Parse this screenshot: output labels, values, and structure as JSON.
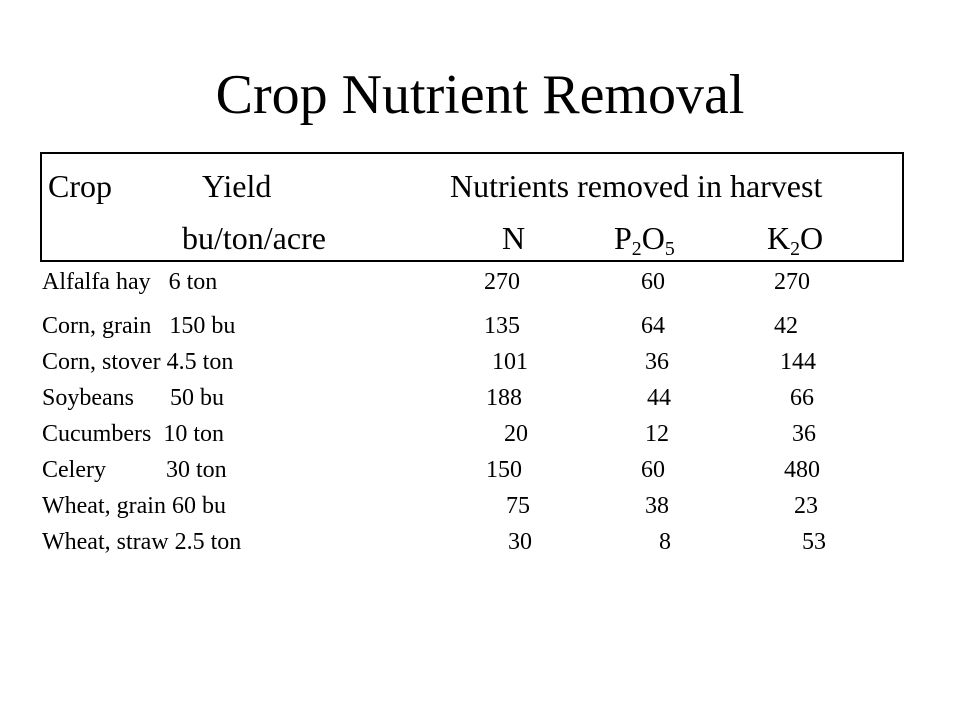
{
  "title": "Crop Nutrient Removal",
  "header": {
    "crop": "Crop",
    "yield": "Yield",
    "nutrients": "Nutrients removed in harvest",
    "units": "bu/ton/acre",
    "n": "N",
    "p_base": "P",
    "p_sub1": "2",
    "p_o": "O",
    "p_sub2": "5",
    "k_base": "K",
    "k_sub": "2",
    "k_o": "O"
  },
  "rows": [
    {
      "crop_yield": "Alfalfa hay   6 ton",
      "n": "270",
      "p2o5": "60",
      "k2o": "270"
    },
    {
      "crop_yield": "Corn, grain   150 bu",
      "n": "135",
      "p2o5": "64",
      "k2o": "42"
    },
    {
      "crop_yield": "Corn, stover 4.5 ton",
      "n": "101",
      "p2o5": "36",
      "k2o": "144"
    },
    {
      "crop_yield": "Soybeans      50 bu",
      "n": "188",
      "p2o5": "44",
      "k2o": "66"
    },
    {
      "crop_yield": "Cucumbers  10 ton",
      "n": "20",
      "p2o5": "12",
      "k2o": "36"
    },
    {
      "crop_yield": "Celery          30 ton",
      "n": "150",
      "p2o5": "60",
      "k2o": "480"
    },
    {
      "crop_yield": "Wheat, grain 60 bu",
      "n": "75",
      "p2o5": "38",
      "k2o": "23"
    },
    {
      "crop_yield": "Wheat, straw 2.5 ton",
      "n": "30",
      "p2o5": "8",
      "k2o": "53"
    }
  ]
}
